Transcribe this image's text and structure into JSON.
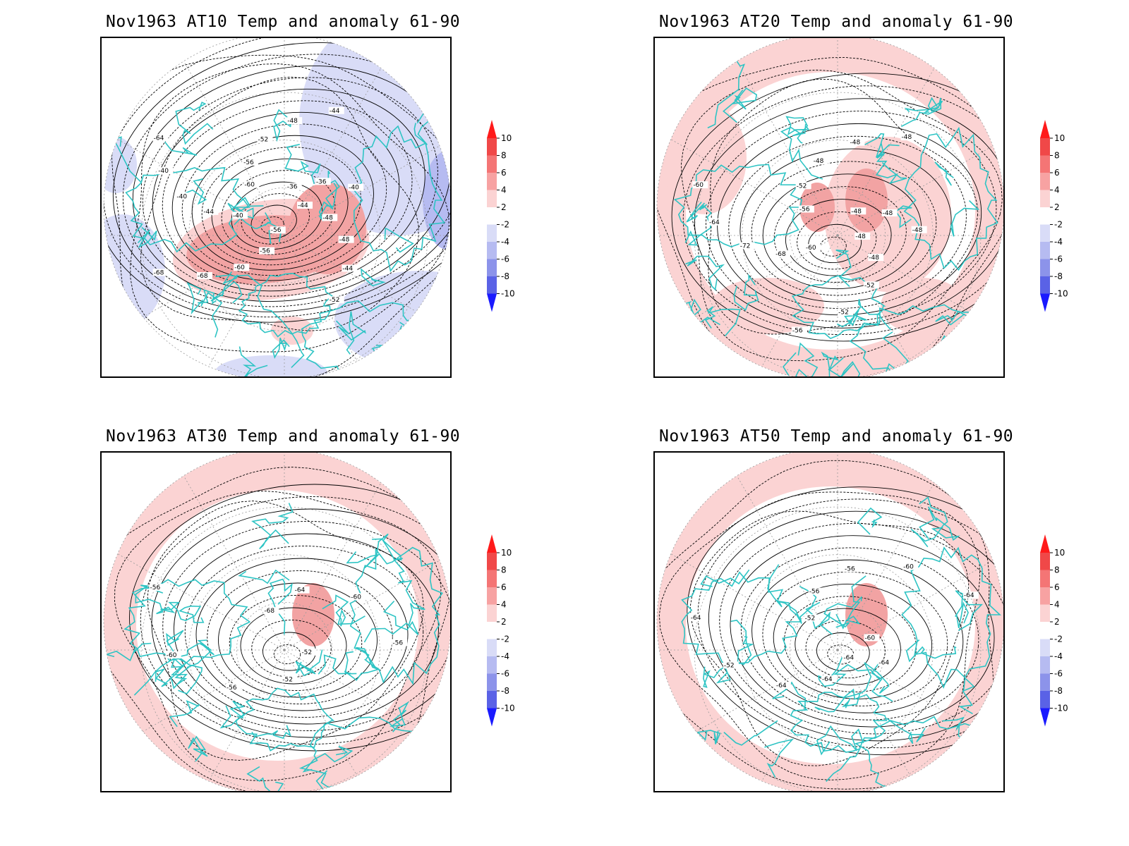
{
  "colors": {
    "coast": "#2ec4c4",
    "warm_light": "#fbd3d3",
    "warm_mid": "#f2a3a3",
    "cool_light": "#d9dcf7",
    "cool_mid": "#b6bbf1",
    "contour": "#000000",
    "grid": "#9a9a9a"
  },
  "colorbar": {
    "levels": [
      "10",
      "8",
      "6",
      "4",
      "2",
      "-2",
      "-4",
      "-6",
      "-8",
      "-10"
    ],
    "colors": [
      "#ff1a1a",
      "#f04848",
      "#f47575",
      "#f7a2a2",
      "#fbd3d3",
      "#ffffff",
      "#d9dcf7",
      "#b6bbf1",
      "#8c93ea",
      "#5a62e6",
      "#1a1aff"
    ]
  },
  "panels": [
    {
      "id": "at10",
      "title": "Nov1963 AT10 Temp and anomaly 61-90",
      "contour_labels": [
        "-44",
        "-48",
        "-48",
        "-44",
        "-52",
        "-56",
        "-56",
        "-60",
        "-68",
        "-68",
        "-40",
        "-44",
        "-40",
        "-40",
        "-64",
        "-60",
        "-56",
        "-52",
        "-48",
        "-44",
        "-36",
        "-36",
        "-40"
      ],
      "anomaly_field": "mixed"
    },
    {
      "id": "at20",
      "title": "Nov1963 AT20 Temp and anomaly 61-90",
      "contour_labels": [
        "-48",
        "-48",
        "-52",
        "-52",
        "-56",
        "-60",
        "-68",
        "-72",
        "-64",
        "-60",
        "-56",
        "-52",
        "-48",
        "-48",
        "-48",
        "-48",
        "-48",
        "-48"
      ],
      "anomaly_field": "warm"
    },
    {
      "id": "at30",
      "title": "Nov1963 AT30 Temp and anomaly 61-90",
      "contour_labels": [
        "-52",
        "-52",
        "-56",
        "-60",
        "-56",
        "-68",
        "-64",
        "-60",
        "-56"
      ],
      "anomaly_field": "warm"
    },
    {
      "id": "at50",
      "title": "Nov1963 AT50 Temp and anomaly 61-90",
      "contour_labels": [
        "-64",
        "-64",
        "-64",
        "-52",
        "-64",
        "-52",
        "-56",
        "-56",
        "-60",
        "-64",
        "-60",
        "-64"
      ],
      "anomaly_field": "warm"
    }
  ]
}
